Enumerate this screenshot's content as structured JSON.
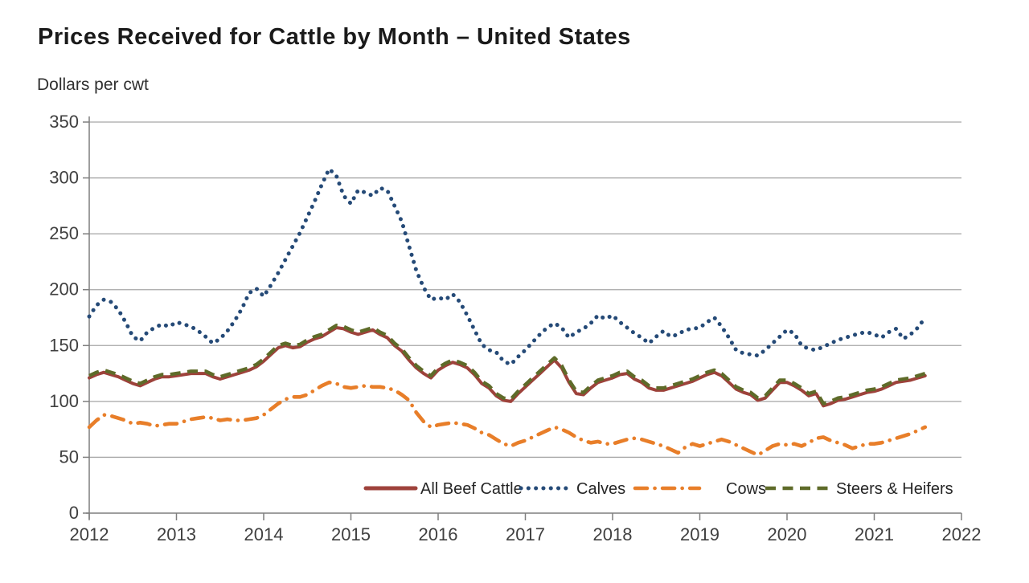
{
  "header": {
    "title": "Prices Received for Cattle by Month – United States",
    "units_label": "Dollars per cwt"
  },
  "chart_data": {
    "type": "line",
    "title": "Prices Received for Cattle by Month – United States",
    "ylabel": "Dollars per cwt",
    "frequency": "monthly",
    "x_start": "2012-01",
    "x_end": "2021-08",
    "x_tick_labels": [
      "2012",
      "2013",
      "2014",
      "2015",
      "2016",
      "2017",
      "2018",
      "2019",
      "2020",
      "2021",
      "2022"
    ],
    "ylim": [
      0,
      350
    ],
    "y_ticks": [
      0,
      50,
      100,
      150,
      200,
      250,
      300,
      350
    ],
    "grid": "horizontal",
    "legend_position": "bottom-inside",
    "colors": {
      "grid": "#a6a6a6",
      "axis": "#7f7f7f",
      "tick_label": "#404040",
      "legend_label": "#262626"
    },
    "series": [
      {
        "name": "All Beef Cattle",
        "color": "#9e423b",
        "line_style": "solid",
        "values": [
          121,
          124,
          126,
          124,
          122,
          119,
          116,
          114,
          117,
          120,
          122,
          122,
          123,
          124,
          125,
          125,
          125,
          122,
          120,
          122,
          124,
          126,
          128,
          131,
          136,
          142,
          148,
          150,
          148,
          149,
          153,
          156,
          158,
          162,
          166,
          165,
          162,
          160,
          162,
          164,
          160,
          157,
          150,
          145,
          137,
          130,
          125,
          121,
          128,
          132,
          135,
          133,
          130,
          124,
          116,
          112,
          105,
          101,
          100,
          107,
          113,
          119,
          125,
          131,
          137,
          130,
          117,
          107,
          106,
          112,
          117,
          119,
          121,
          124,
          125,
          120,
          117,
          112,
          110,
          110,
          112,
          114,
          116,
          118,
          121,
          124,
          126,
          123,
          117,
          111,
          108,
          106,
          101,
          103,
          110,
          117,
          117,
          114,
          110,
          105,
          107,
          96,
          98,
          101,
          102,
          104,
          106,
          108,
          109,
          111,
          114,
          117,
          118,
          119,
          121,
          123
        ]
      },
      {
        "name": "Calves",
        "color": "#254a77",
        "line_style": "dotted",
        "values": [
          176,
          186,
          191,
          189,
          182,
          171,
          158,
          154,
          162,
          166,
          169,
          167,
          171,
          169,
          167,
          163,
          158,
          152,
          156,
          163,
          172,
          183,
          197,
          201,
          194,
          204,
          215,
          227,
          239,
          251,
          265,
          279,
          294,
          308,
          302,
          284,
          277,
          289,
          287,
          284,
          291,
          289,
          275,
          261,
          239,
          217,
          202,
          191,
          193,
          191,
          196,
          189,
          177,
          164,
          151,
          146,
          144,
          136,
          133,
          140,
          146,
          153,
          160,
          166,
          170,
          166,
          157,
          162,
          165,
          170,
          177,
          174,
          177,
          171,
          166,
          161,
          157,
          152,
          158,
          163,
          158,
          160,
          164,
          165,
          166,
          171,
          175,
          167,
          157,
          146,
          143,
          142,
          141,
          146,
          152,
          158,
          164,
          161,
          150,
          147,
          146,
          149,
          152,
          155,
          157,
          159,
          161,
          162,
          160,
          157,
          162,
          165,
          156,
          160,
          166,
          175
        ]
      },
      {
        "name": "Cows",
        "color": "#e87e29",
        "line_style": "dash-dot",
        "values": [
          77,
          83,
          88,
          87,
          85,
          83,
          80,
          81,
          80,
          78,
          79,
          80,
          80,
          82,
          84,
          85,
          86,
          85,
          83,
          84,
          83,
          83,
          84,
          85,
          88,
          93,
          98,
          102,
          104,
          104,
          106,
          110,
          114,
          117,
          116,
          113,
          112,
          113,
          114,
          113,
          113,
          112,
          110,
          106,
          101,
          90,
          82,
          77,
          79,
          80,
          81,
          80,
          79,
          76,
          72,
          70,
          66,
          62,
          60,
          63,
          65,
          68,
          71,
          74,
          77,
          75,
          72,
          68,
          65,
          63,
          64,
          62,
          62,
          64,
          66,
          67,
          66,
          64,
          62,
          60,
          57,
          54,
          59,
          62,
          60,
          62,
          64,
          66,
          64,
          61,
          58,
          55,
          52,
          56,
          60,
          62,
          61,
          62,
          60,
          63,
          67,
          68,
          65,
          63,
          61,
          58,
          60,
          62,
          62,
          63,
          65,
          67,
          69,
          71,
          74,
          77
        ]
      },
      {
        "name": "Steers & Heifers",
        "color": "#5e6b29",
        "line_style": "dashed",
        "values": [
          123,
          126,
          128,
          126,
          124,
          121,
          118,
          116,
          119,
          122,
          124,
          124,
          125,
          126,
          127,
          127,
          127,
          124,
          122,
          124,
          126,
          128,
          130,
          133,
          138,
          144,
          150,
          152,
          150,
          151,
          155,
          158,
          160,
          164,
          168,
          167,
          164,
          162,
          164,
          166,
          162,
          159,
          152,
          147,
          139,
          132,
          127,
          123,
          130,
          134,
          137,
          135,
          132,
          126,
          118,
          114,
          107,
          103,
          102,
          109,
          115,
          121,
          127,
          133,
          139,
          132,
          119,
          109,
          108,
          114,
          119,
          121,
          123,
          126,
          127,
          122,
          119,
          114,
          112,
          112,
          114,
          116,
          118,
          120,
          123,
          126,
          128,
          125,
          119,
          113,
          110,
          108,
          103,
          105,
          112,
          119,
          119,
          116,
          112,
          107,
          109,
          98,
          100,
          103,
          104,
          106,
          108,
          110,
          111,
          113,
          116,
          119,
          120,
          121,
          123,
          125
        ]
      }
    ]
  }
}
